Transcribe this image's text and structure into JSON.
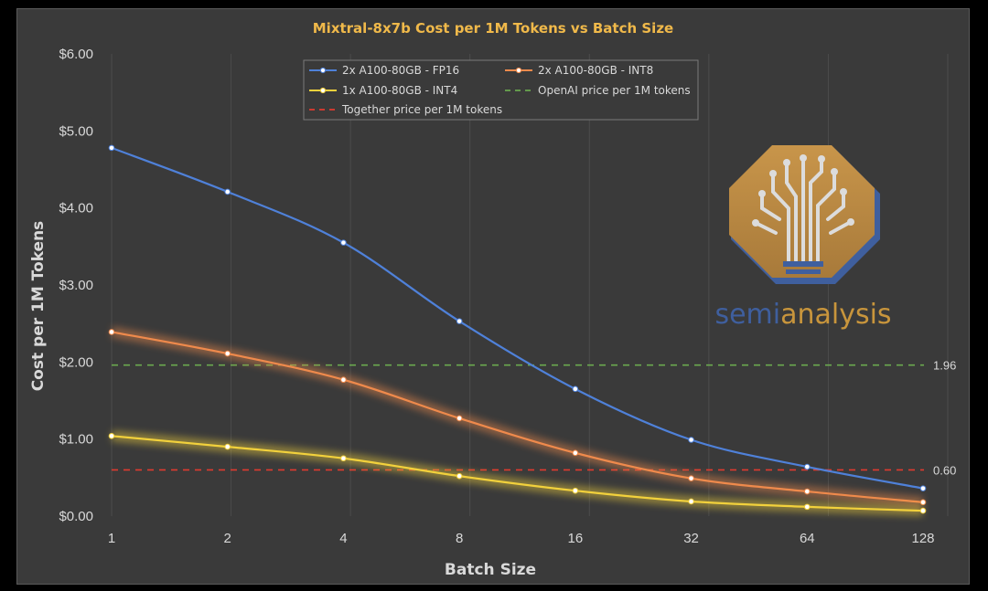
{
  "chart_data": {
    "type": "line",
    "title": "Mixtral-8x7b Cost per 1M Tokens vs Batch Size",
    "xlabel": "Batch Size",
    "ylabel": "Cost per 1M Tokens",
    "categories": [
      "1",
      "2",
      "4",
      "8",
      "16",
      "32",
      "64",
      "128"
    ],
    "y_ticks": [
      "$0.00",
      "$1.00",
      "$2.00",
      "$3.00",
      "$4.00",
      "$5.00",
      "$6.00"
    ],
    "ylim": [
      0,
      6
    ],
    "grid": "vertical",
    "legend_position": "top-center",
    "series": [
      {
        "name": "2x A100-80GB - FP16",
        "color": "#4f81d9",
        "glow": false,
        "values": [
          4.78,
          4.21,
          3.55,
          2.53,
          1.65,
          0.99,
          0.64,
          0.36
        ]
      },
      {
        "name": "2x A100-80GB - INT8",
        "color": "#ef8a4c",
        "glow": true,
        "values": [
          2.39,
          2.11,
          1.77,
          1.27,
          0.82,
          0.49,
          0.32,
          0.18
        ]
      },
      {
        "name": "1x A100-80GB - INT4",
        "color": "#f2d13c",
        "glow": true,
        "values": [
          1.04,
          0.9,
          0.75,
          0.52,
          0.33,
          0.19,
          0.12,
          0.07
        ]
      }
    ],
    "reference_lines": [
      {
        "name": "OpenAI price per 1M tokens",
        "value": 1.96,
        "label": "1.96",
        "color": "#6aa84f"
      },
      {
        "name": "Together price per 1M tokens",
        "value": 0.6,
        "label": "0.60",
        "color": "#e03a2f"
      }
    ]
  },
  "watermark": {
    "brand_part1": "semi",
    "brand_part2": "analysis",
    "color1": "#3f5f9e",
    "color2": "#c8953c"
  }
}
